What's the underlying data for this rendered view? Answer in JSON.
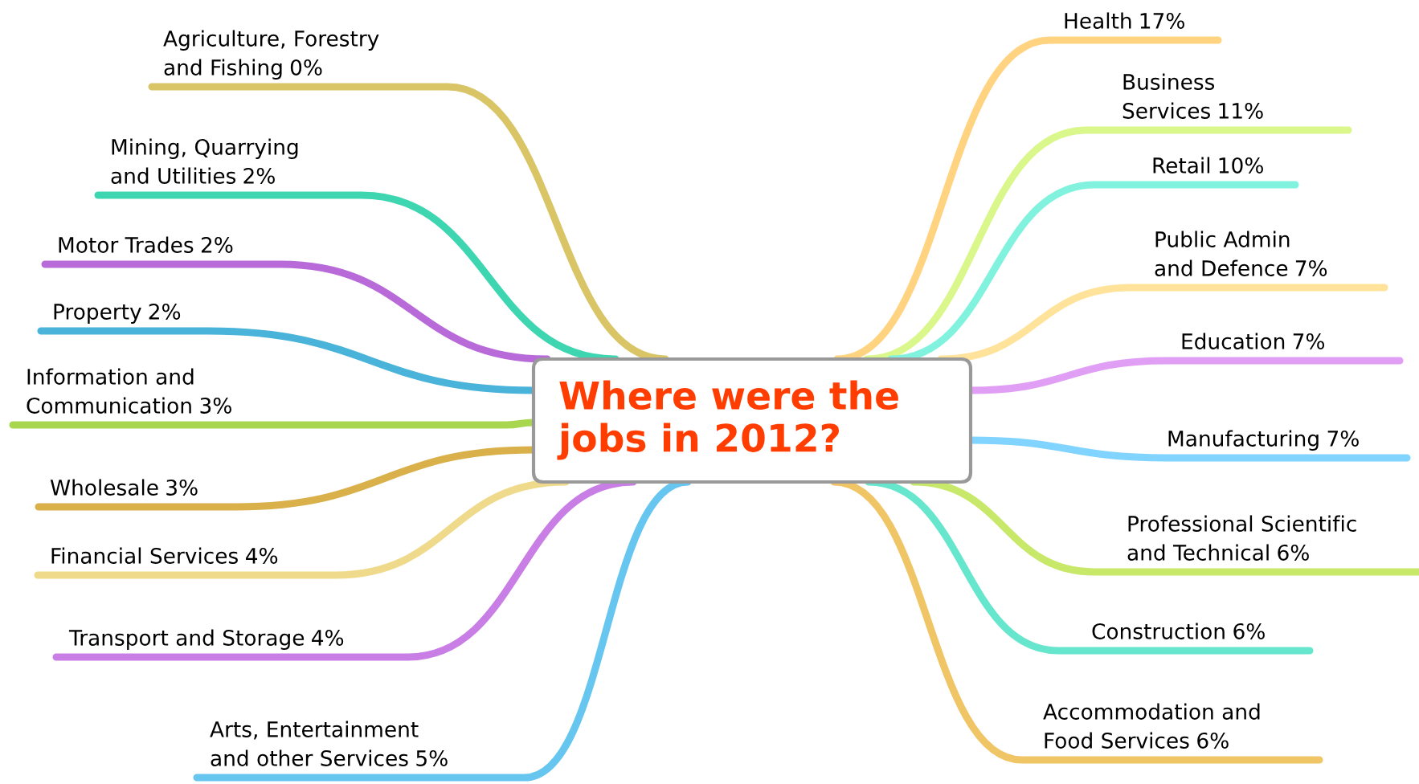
{
  "chart_data": {
    "type": "other",
    "title": "Where were the\njobs in 2012?",
    "categories": [
      "Agriculture, Forestry\nand Fishing",
      "Mining, Quarrying\nand Utilities",
      "Motor Trades",
      "Property",
      "Information and\nCommunication",
      "Wholesale",
      "Financial Services",
      "Transport and Storage",
      "Arts, Entertainment\nand other Services",
      "Health",
      "Business\nServices",
      "Retail",
      "Public Admin\nand Defence",
      "Education",
      "Manufacturing",
      "Professional Scientific\nand Technical",
      "Construction",
      "Accommodation and\nFood Services"
    ],
    "values": [
      0,
      2,
      2,
      2,
      3,
      3,
      4,
      4,
      5,
      17,
      11,
      10,
      7,
      7,
      7,
      6,
      6,
      6
    ],
    "value_labels": [
      "0%",
      "2%",
      "2%",
      "2%",
      "3%",
      "3%",
      "4%",
      "4%",
      "5%",
      "17%",
      "11%",
      "10%",
      "7%",
      "7%",
      "7%",
      "6%",
      "6%",
      "6%"
    ],
    "colors": [
      "#d9c466",
      "#3dd6b0",
      "#b86ad9",
      "#4ab3d9",
      "#a8d64f",
      "#d9b04a",
      "#efd98a",
      "#c97ee6",
      "#66c6ef",
      "#ffd37f",
      "#d9f78a",
      "#80f2dd",
      "#ffe39a",
      "#e09ef5",
      "#80d4ff",
      "#c8e86a",
      "#66e6cc",
      "#efc566"
    ]
  }
}
